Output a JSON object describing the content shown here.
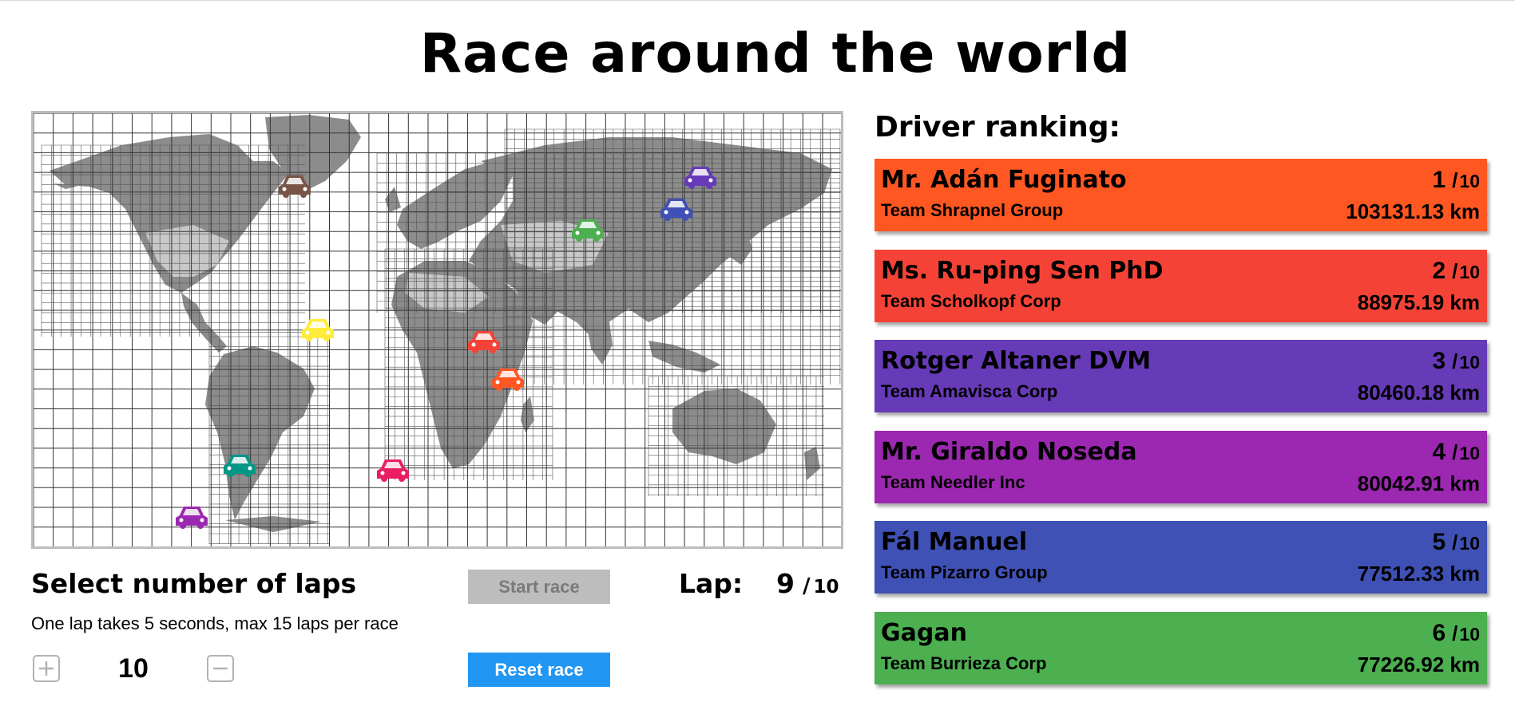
{
  "title": "Race around the world",
  "controls": {
    "laps_title": "Select number of laps",
    "laps_subtitle": "One lap takes 5 seconds, max 15 laps per race",
    "lap_count": "10",
    "plus_icon": "plus-icon",
    "minus_icon": "minus-icon",
    "start_label": "Start race",
    "reset_label": "Reset race",
    "lap_label": "Lap:",
    "lap_current": "9",
    "lap_separator": "/",
    "lap_total": "10"
  },
  "ranking": {
    "title": "Driver ranking:",
    "drivers": [
      {
        "name": "Mr. Adán Fuginato",
        "team": "Team Shrapnel Group",
        "position": "1",
        "total": "10",
        "distance": "103131.13 km",
        "color": "#ff5722"
      },
      {
        "name": "Ms. Ru-ping Sen PhD",
        "team": "Team Scholkopf Corp",
        "position": "2",
        "total": "10",
        "distance": "88975.19 km",
        "color": "#f44336"
      },
      {
        "name": "Rotger Altaner DVM",
        "team": "Team Amavisca Corp",
        "position": "3",
        "total": "10",
        "distance": "80460.18 km",
        "color": "#673ab7"
      },
      {
        "name": "Mr. Giraldo Noseda",
        "team": "Team Needler Inc",
        "position": "4",
        "total": "10",
        "distance": "80042.91 km",
        "color": "#9c27b0"
      },
      {
        "name": "Fál Manuel",
        "team": "Team Pizarro Group",
        "position": "5",
        "total": "10",
        "distance": "77512.33 km",
        "color": "#3f51b5"
      },
      {
        "name": "Gagan",
        "team": "Team Burrieza Corp",
        "position": "6",
        "total": "10",
        "distance": "77226.92 km",
        "color": "#4caf50"
      }
    ]
  },
  "map": {
    "icon": "world-map-grid",
    "car_icon": "car-icon",
    "car_colors": [
      "#795548",
      "#673ab7",
      "#3f51b5",
      "#4caf50",
      "#ffeb3b",
      "#f44336",
      "#ff5722",
      "#009688",
      "#e91e63",
      "#9c27b0"
    ]
  }
}
